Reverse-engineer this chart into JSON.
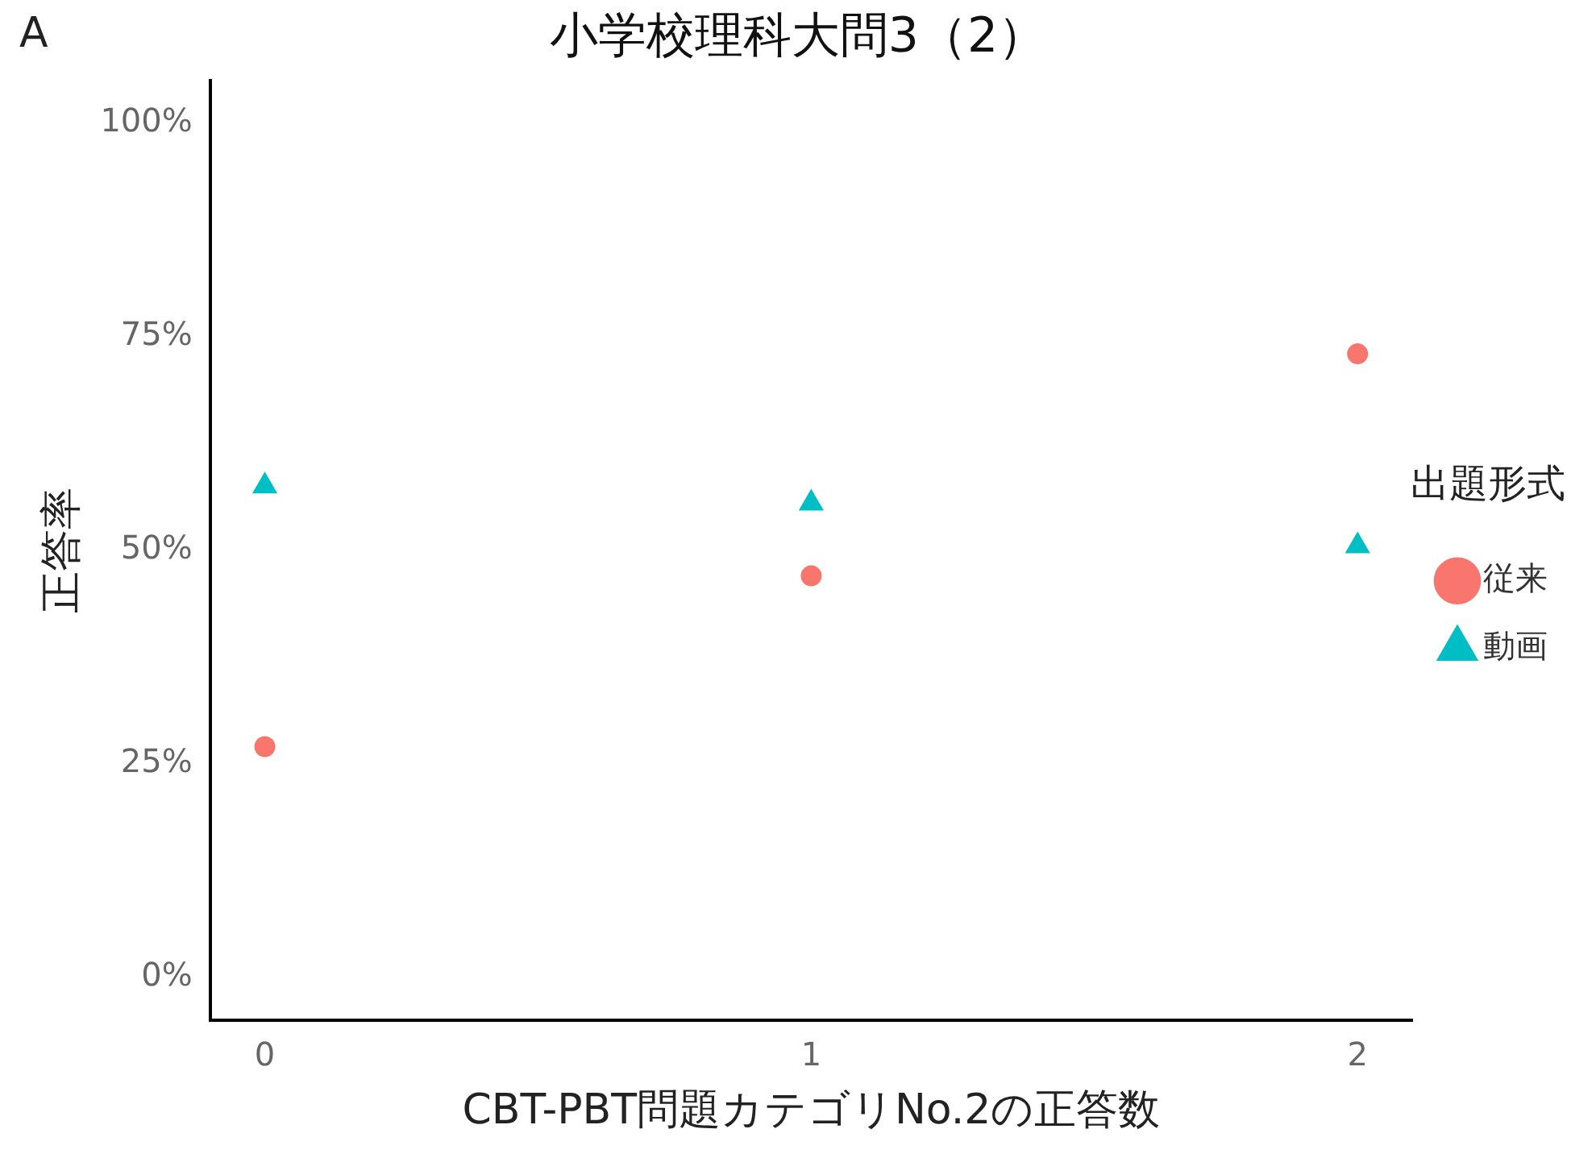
{
  "chart_data": {
    "type": "scatter",
    "title": "小学校理科大問3（2）",
    "annotations": [
      "A"
    ],
    "xlabel": "CBT-PBT問題カテゴリNo.2の正答数",
    "ylabel": "正答率",
    "legend_title": "出題形式",
    "legend": "right",
    "grid": false,
    "x": [
      0,
      1,
      2
    ],
    "xlim": [
      -0.1,
      2.1
    ],
    "xticks": [
      0,
      1,
      2
    ],
    "ylim": [
      -5,
      105
    ],
    "yticks": [
      {
        "value": 0,
        "label": "0%"
      },
      {
        "value": 25,
        "label": "25%"
      },
      {
        "value": 50,
        "label": "50%"
      },
      {
        "value": 75,
        "label": "75%"
      },
      {
        "value": 100,
        "label": "100%"
      }
    ],
    "series": [
      {
        "name": "従来",
        "color": "#f8766d",
        "marker": "circle",
        "values": [
          27,
          47,
          73
        ]
      },
      {
        "name": "動画",
        "color": "#00bfc4",
        "marker": "triangle",
        "values": [
          57.5,
          55.5,
          50.5
        ]
      }
    ]
  }
}
